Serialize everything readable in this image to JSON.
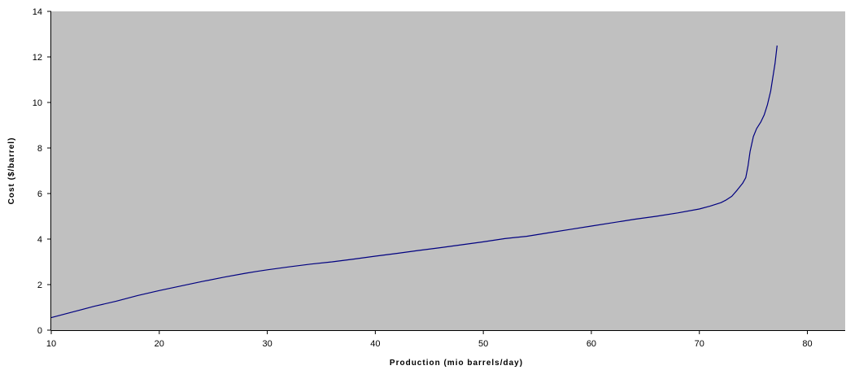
{
  "chart_data": {
    "type": "line",
    "title": "",
    "xlabel": "Production (mio barrels/day)",
    "ylabel": "Cost ($/barrel)",
    "xlim": [
      10,
      83.5
    ],
    "ylim": [
      0,
      14
    ],
    "xticks": [
      10,
      20,
      30,
      40,
      50,
      60,
      70,
      80
    ],
    "yticks": [
      0,
      2,
      4,
      6,
      8,
      10,
      12,
      14
    ],
    "grid": false,
    "legend": "none",
    "plot_background": "#c0c0c0",
    "series": [
      {
        "color": "#000080",
        "x": [
          10,
          12,
          14,
          16,
          18,
          20,
          22,
          24,
          26,
          28,
          29,
          30,
          32,
          34,
          36,
          38,
          40,
          42,
          44,
          46,
          48,
          50,
          52,
          54,
          56,
          58,
          60,
          62,
          64,
          66,
          68,
          70,
          71,
          72,
          72.5,
          73,
          73.5,
          74,
          74.3,
          74.5,
          74.7,
          75,
          75.3,
          75.7,
          76,
          76.3,
          76.6,
          77,
          77.2
        ],
        "y": [
          0.55,
          0.8,
          1.05,
          1.27,
          1.52,
          1.74,
          1.94,
          2.14,
          2.33,
          2.5,
          2.58,
          2.65,
          2.78,
          2.9,
          3.0,
          3.12,
          3.25,
          3.37,
          3.5,
          3.62,
          3.75,
          3.88,
          4.02,
          4.12,
          4.27,
          4.42,
          4.57,
          4.72,
          4.87,
          5.0,
          5.15,
          5.32,
          5.45,
          5.6,
          5.72,
          5.88,
          6.15,
          6.45,
          6.7,
          7.2,
          7.85,
          8.5,
          8.85,
          9.15,
          9.45,
          9.9,
          10.5,
          11.7,
          12.5
        ]
      }
    ]
  }
}
